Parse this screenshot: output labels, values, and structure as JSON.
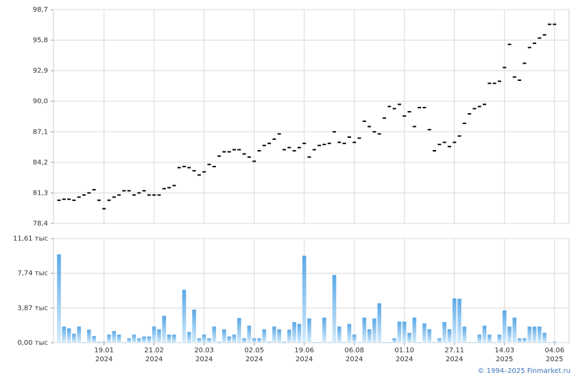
{
  "chart_data": [
    {
      "type": "scatter",
      "color": "#000000",
      "grid": true,
      "ylim": [
        78.4,
        98.7
      ],
      "yticks": [
        {
          "value": 78.4,
          "label": "78,4"
        },
        {
          "value": 81.3,
          "label": "81,3"
        },
        {
          "value": 84.2,
          "label": "84,2"
        },
        {
          "value": 87.1,
          "label": "87,1"
        },
        {
          "value": 90.0,
          "label": "90,0"
        },
        {
          "value": 92.9,
          "label": "92,9"
        },
        {
          "value": 95.8,
          "label": "95,8"
        },
        {
          "value": 98.7,
          "label": "98,7"
        }
      ],
      "values": [
        80.6,
        80.7,
        80.7,
        80.6,
        80.9,
        81.1,
        81.3,
        81.6,
        80.6,
        79.8,
        80.6,
        80.9,
        81.1,
        81.5,
        81.5,
        81.1,
        81.3,
        81.5,
        81.1,
        81.1,
        81.1,
        81.7,
        81.8,
        82.0,
        83.7,
        83.8,
        83.7,
        83.4,
        83.0,
        83.3,
        84.0,
        83.8,
        84.8,
        85.2,
        85.2,
        85.4,
        85.4,
        85.0,
        84.7,
        84.3,
        85.3,
        85.8,
        86.0,
        86.4,
        86.9,
        85.4,
        85.6,
        85.3,
        85.6,
        86.0,
        84.7,
        85.4,
        85.8,
        85.9,
        86.0,
        87.1,
        86.1,
        86.0,
        86.6,
        86.1,
        86.5,
        88.1,
        87.6,
        87.1,
        86.9,
        88.4,
        89.5,
        89.3,
        89.7,
        88.6,
        89.0,
        87.6,
        89.4,
        89.4,
        87.3,
        85.3,
        85.9,
        86.1,
        85.7,
        86.1,
        86.7,
        87.9,
        88.8,
        89.3,
        89.5,
        89.7,
        91.7,
        91.7,
        91.9,
        93.2,
        95.4,
        92.3,
        92.0,
        93.6,
        95.1,
        95.5,
        96.0,
        96.3,
        97.3,
        97.3
      ]
    },
    {
      "type": "bar",
      "color": "#7cbbe8",
      "grid": true,
      "ylim": [
        0,
        11.61
      ],
      "yticks": [
        {
          "value": 0,
          "label": "0,00 тыс"
        },
        {
          "value": 3.87,
          "label": "3,87 тыс"
        },
        {
          "value": 7.74,
          "label": "7,74 тыс"
        },
        {
          "value": 11.61,
          "label": "11,61 тыс"
        }
      ],
      "categories": [
        null,
        null,
        null,
        null,
        null,
        null,
        null,
        null,
        null,
        "19.01",
        null,
        null,
        null,
        null,
        null,
        null,
        null,
        null,
        null,
        "21.02",
        null,
        null,
        null,
        null,
        null,
        null,
        null,
        null,
        null,
        "20.03",
        null,
        null,
        null,
        null,
        null,
        null,
        null,
        null,
        null,
        "02.05",
        null,
        null,
        null,
        null,
        null,
        null,
        null,
        null,
        null,
        "19.06",
        null,
        null,
        null,
        null,
        null,
        null,
        null,
        null,
        null,
        "06.08",
        null,
        null,
        null,
        null,
        null,
        null,
        null,
        null,
        null,
        "01.10",
        null,
        null,
        null,
        null,
        null,
        null,
        null,
        null,
        null,
        "27.11",
        null,
        null,
        null,
        null,
        null,
        null,
        null,
        null,
        null,
        "14.03",
        null,
        null,
        null,
        null,
        null,
        null,
        null,
        null,
        null,
        "04.06"
      ],
      "category_years": [
        null,
        null,
        null,
        null,
        null,
        null,
        null,
        null,
        null,
        "2024",
        null,
        null,
        null,
        null,
        null,
        null,
        null,
        null,
        null,
        "2024",
        null,
        null,
        null,
        null,
        null,
        null,
        null,
        null,
        null,
        "2024",
        null,
        null,
        null,
        null,
        null,
        null,
        null,
        null,
        null,
        "2024",
        null,
        null,
        null,
        null,
        null,
        null,
        null,
        null,
        null,
        "2024",
        null,
        null,
        null,
        null,
        null,
        null,
        null,
        null,
        null,
        "2024",
        null,
        null,
        null,
        null,
        null,
        null,
        null,
        null,
        null,
        "2024",
        null,
        null,
        null,
        null,
        null,
        null,
        null,
        null,
        null,
        "2024",
        null,
        null,
        null,
        null,
        null,
        null,
        null,
        null,
        null,
        "2025",
        null,
        null,
        null,
        null,
        null,
        null,
        null,
        null,
        null,
        "2025"
      ],
      "values": [
        9.85,
        1.8,
        1.6,
        1.0,
        1.8,
        0.05,
        1.45,
        0.75,
        0.1,
        0.1,
        0.9,
        1.3,
        0.9,
        0.05,
        0.5,
        0.9,
        0.5,
        0.7,
        0.7,
        1.8,
        1.5,
        3.0,
        0.9,
        0.9,
        0.02,
        5.9,
        1.2,
        3.7,
        0.5,
        0.9,
        0.5,
        1.8,
        0.1,
        1.5,
        0.7,
        0.9,
        2.75,
        0.5,
        1.9,
        0.5,
        0.5,
        1.5,
        0.1,
        1.8,
        1.5,
        0.1,
        1.45,
        2.3,
        2.1,
        9.7,
        2.7,
        0.05,
        0.05,
        2.8,
        0.05,
        7.55,
        1.8,
        0.05,
        2.1,
        0.9,
        0.05,
        2.8,
        1.5,
        2.7,
        4.4,
        0.05,
        0.05,
        0.5,
        2.35,
        2.35,
        1.1,
        2.8,
        0.05,
        2.15,
        1.5,
        0.05,
        0.5,
        2.3,
        1.5,
        4.95,
        4.9,
        1.8,
        0.05,
        0.05,
        0.9,
        1.9,
        0.9,
        0.05,
        0.9,
        3.6,
        1.8,
        2.8,
        0.5,
        0.5,
        1.8,
        1.8,
        1.8,
        1.1,
        0.05,
        0.1
      ]
    }
  ],
  "source": "© 1994–2025 Finmarket.ru"
}
